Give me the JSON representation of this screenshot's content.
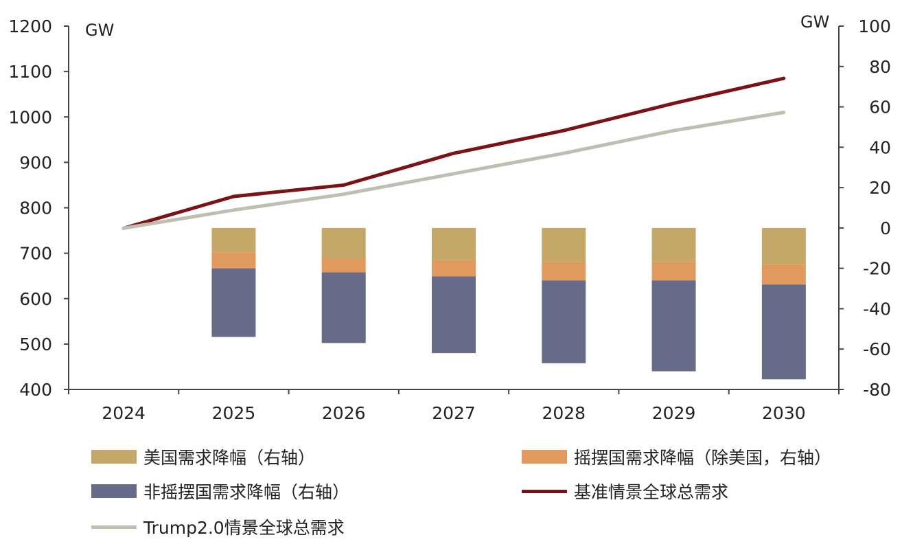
{
  "chart_data": {
    "type": "bar+line",
    "categories": [
      "2024",
      "2025",
      "2026",
      "2027",
      "2028",
      "2029",
      "2030"
    ],
    "left_axis": {
      "unit": "GW",
      "ylim": [
        400,
        1200
      ],
      "ticks": [
        1200,
        1100,
        1000,
        900,
        800,
        700,
        600,
        500,
        400
      ]
    },
    "right_axis": {
      "unit": "GW",
      "ylim": [
        -80,
        100
      ],
      "ticks": [
        100,
        80,
        60,
        40,
        20,
        0,
        -20,
        -40,
        -60,
        -80
      ]
    },
    "bar_series": [
      {
        "name": "美国需求降幅（右轴）",
        "color": "#C4A769",
        "axis": "right",
        "values": [
          0,
          -12,
          -15,
          -16,
          -17,
          -17,
          -18
        ]
      },
      {
        "name": "摇摆国需求降幅（除美国，右轴）",
        "color": "#E2995E",
        "axis": "right",
        "values": [
          0,
          -8,
          -7,
          -8,
          -9,
          -9,
          -10
        ]
      },
      {
        "name": "非摇摆国需求降幅（右轴）",
        "color": "#666C88",
        "axis": "right",
        "values": [
          0,
          -34,
          -35,
          -38,
          -41,
          -45,
          -47
        ]
      }
    ],
    "line_series": [
      {
        "name": "基准情景全球总需求",
        "color": "#7B1218",
        "axis": "left",
        "values": [
          755,
          825,
          850,
          920,
          970,
          1030,
          1085
        ]
      },
      {
        "name": "Trump2.0情景全球总需求",
        "color": "#BFBFB1",
        "axis": "left",
        "values": [
          755,
          795,
          830,
          875,
          920,
          970,
          1010
        ]
      }
    ],
    "grid": false,
    "legend_position": "bottom"
  }
}
